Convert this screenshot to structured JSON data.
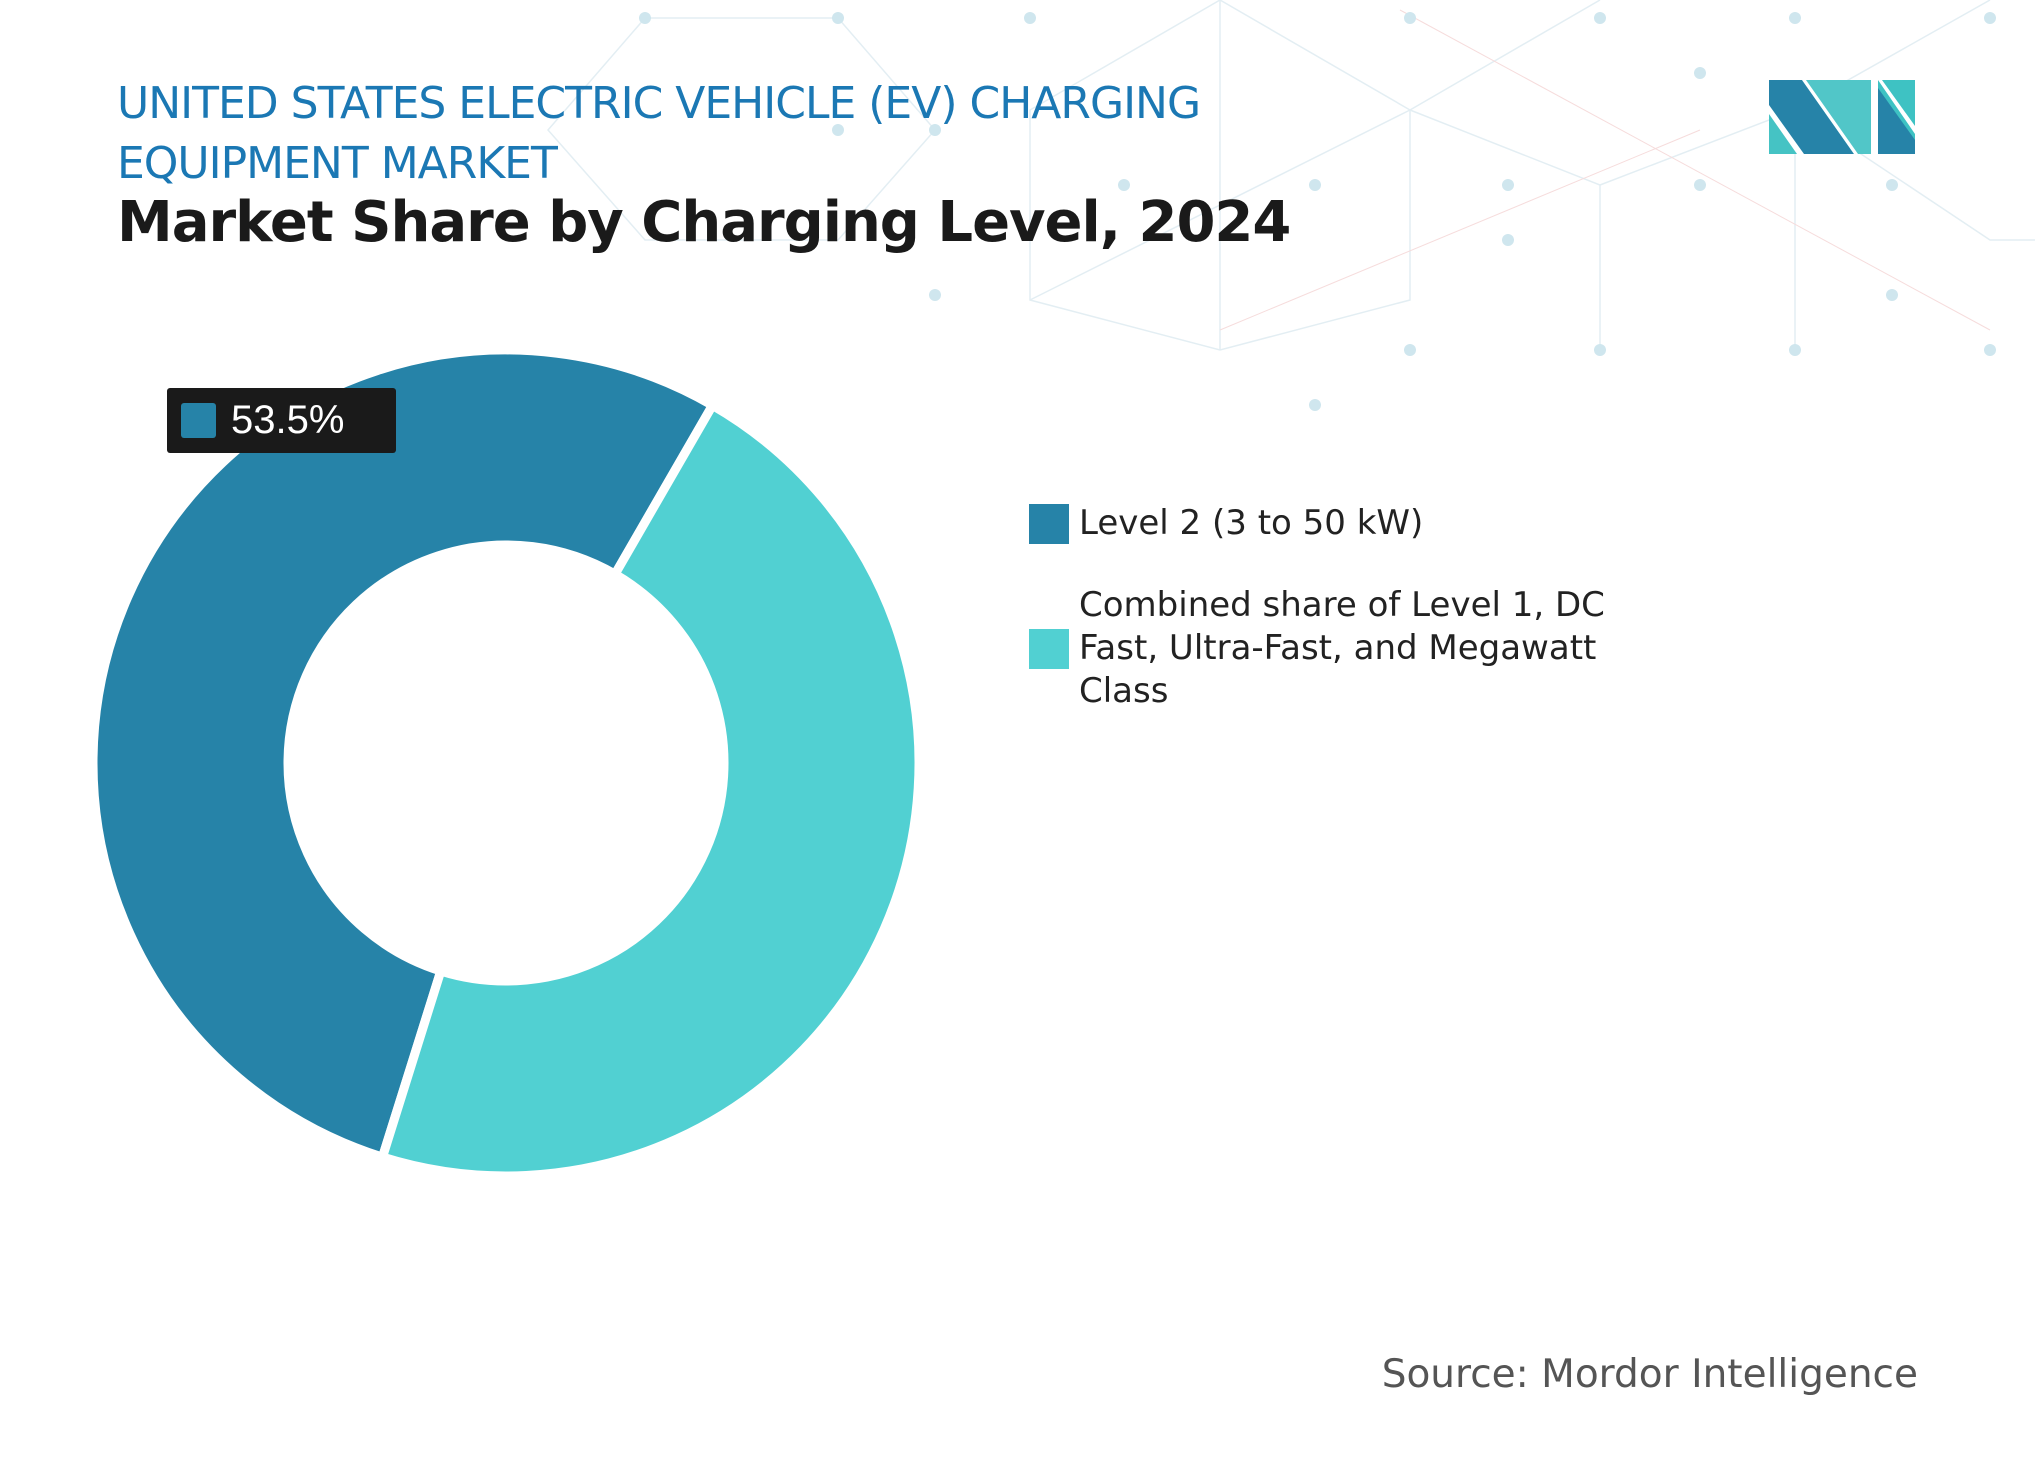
{
  "header": {
    "title": "UNITED STATES ELECTRIC VEHICLE (EV) CHARGING EQUIPMENT MARKET",
    "subtitle": "Market Share by Charging Level, 2024"
  },
  "colors": {
    "level2": "#2683a8",
    "combined": "#51d0d2",
    "title": "#1b78b4"
  },
  "chart_data": {
    "type": "pie",
    "variant": "donut",
    "title": "Market Share by Charging Level, 2024",
    "categories": [
      "Level 2 (3 to 50 kW)",
      "Combined share of Level 1, DC Fast, Ultra-Fast, and Megawatt Class"
    ],
    "values": [
      53.5,
      46.5
    ],
    "unit": "%",
    "data_labels": [
      "53.5%"
    ],
    "legend_position": "right"
  },
  "source": "Source: Mordor Intelligence"
}
